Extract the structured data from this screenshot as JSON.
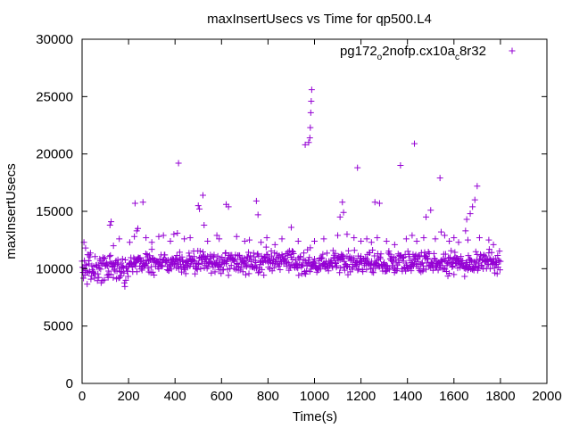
{
  "chart_data": {
    "type": "scatter",
    "title": "maxInsertUsecs vs Time for qp500.L4",
    "xlabel": "Time(s)",
    "ylabel": "maxInsertUsecs",
    "xlim": [
      0,
      2000
    ],
    "ylim": [
      0,
      30000
    ],
    "xticks": [
      0,
      200,
      400,
      600,
      800,
      1000,
      1200,
      1400,
      1600,
      1800,
      2000
    ],
    "yticks": [
      0,
      5000,
      10000,
      15000,
      20000,
      25000,
      30000
    ],
    "grid": false,
    "legend_position": "top-right",
    "series": [
      {
        "name": "pg172_o2nofp.cx10a_c8r32",
        "legend_parts": [
          "pg172",
          "o",
          "2nofp.cx10a",
          "c",
          "8r32"
        ],
        "color": "#9400d3",
        "marker": "+",
        "band": {
          "x_start": 0,
          "x_end": 1800,
          "x_step": 2,
          "segments": [
            {
              "x_from": 0,
              "x_to": 200,
              "y_low": 8500,
              "y_high": 11500
            },
            {
              "x_from": 200,
              "x_to": 1800,
              "y_low": 9300,
              "y_high": 11800
            }
          ]
        },
        "outliers": [
          {
            "x": 8,
            "y": 12300
          },
          {
            "x": 15,
            "y": 11800
          },
          {
            "x": 30,
            "y": 11200
          },
          {
            "x": 120,
            "y": 13800
          },
          {
            "x": 125,
            "y": 14100
          },
          {
            "x": 135,
            "y": 12000
          },
          {
            "x": 160,
            "y": 12600
          },
          {
            "x": 205,
            "y": 12300
          },
          {
            "x": 225,
            "y": 12800
          },
          {
            "x": 228,
            "y": 15700
          },
          {
            "x": 235,
            "y": 13300
          },
          {
            "x": 240,
            "y": 13500
          },
          {
            "x": 262,
            "y": 15800
          },
          {
            "x": 275,
            "y": 12700
          },
          {
            "x": 300,
            "y": 12300
          },
          {
            "x": 330,
            "y": 12800
          },
          {
            "x": 350,
            "y": 12900
          },
          {
            "x": 380,
            "y": 12400
          },
          {
            "x": 395,
            "y": 13000
          },
          {
            "x": 410,
            "y": 13100
          },
          {
            "x": 415,
            "y": 19200
          },
          {
            "x": 440,
            "y": 12600
          },
          {
            "x": 465,
            "y": 12700
          },
          {
            "x": 500,
            "y": 15500
          },
          {
            "x": 505,
            "y": 15200
          },
          {
            "x": 520,
            "y": 16400
          },
          {
            "x": 525,
            "y": 13800
          },
          {
            "x": 540,
            "y": 12400
          },
          {
            "x": 580,
            "y": 12900
          },
          {
            "x": 590,
            "y": 12600
          },
          {
            "x": 620,
            "y": 15600
          },
          {
            "x": 630,
            "y": 15400
          },
          {
            "x": 665,
            "y": 12800
          },
          {
            "x": 700,
            "y": 12400
          },
          {
            "x": 720,
            "y": 12500
          },
          {
            "x": 750,
            "y": 15900
          },
          {
            "x": 757,
            "y": 14700
          },
          {
            "x": 770,
            "y": 12300
          },
          {
            "x": 795,
            "y": 12700
          },
          {
            "x": 830,
            "y": 12100
          },
          {
            "x": 860,
            "y": 12600
          },
          {
            "x": 900,
            "y": 13600
          },
          {
            "x": 930,
            "y": 12400
          },
          {
            "x": 960,
            "y": 20800
          },
          {
            "x": 975,
            "y": 21000
          },
          {
            "x": 980,
            "y": 21400
          },
          {
            "x": 982,
            "y": 22300
          },
          {
            "x": 984,
            "y": 23600
          },
          {
            "x": 986,
            "y": 24600
          },
          {
            "x": 988,
            "y": 25600
          },
          {
            "x": 1000,
            "y": 12400
          },
          {
            "x": 1040,
            "y": 12600
          },
          {
            "x": 1100,
            "y": 12900
          },
          {
            "x": 1110,
            "y": 14500
          },
          {
            "x": 1120,
            "y": 15800
          },
          {
            "x": 1125,
            "y": 14900
          },
          {
            "x": 1140,
            "y": 13000
          },
          {
            "x": 1170,
            "y": 12700
          },
          {
            "x": 1185,
            "y": 18800
          },
          {
            "x": 1200,
            "y": 12400
          },
          {
            "x": 1225,
            "y": 12600
          },
          {
            "x": 1245,
            "y": 12300
          },
          {
            "x": 1260,
            "y": 15800
          },
          {
            "x": 1270,
            "y": 12700
          },
          {
            "x": 1280,
            "y": 15700
          },
          {
            "x": 1310,
            "y": 12400
          },
          {
            "x": 1345,
            "y": 12100
          },
          {
            "x": 1370,
            "y": 19000
          },
          {
            "x": 1395,
            "y": 12600
          },
          {
            "x": 1420,
            "y": 12900
          },
          {
            "x": 1430,
            "y": 20900
          },
          {
            "x": 1440,
            "y": 12400
          },
          {
            "x": 1470,
            "y": 12700
          },
          {
            "x": 1480,
            "y": 14500
          },
          {
            "x": 1500,
            "y": 15100
          },
          {
            "x": 1520,
            "y": 12600
          },
          {
            "x": 1540,
            "y": 17900
          },
          {
            "x": 1545,
            "y": 13200
          },
          {
            "x": 1560,
            "y": 12900
          },
          {
            "x": 1580,
            "y": 12400
          },
          {
            "x": 1600,
            "y": 12700
          },
          {
            "x": 1620,
            "y": 12300
          },
          {
            "x": 1650,
            "y": 13300
          },
          {
            "x": 1655,
            "y": 14300
          },
          {
            "x": 1660,
            "y": 12500
          },
          {
            "x": 1670,
            "y": 14800
          },
          {
            "x": 1680,
            "y": 15400
          },
          {
            "x": 1690,
            "y": 16000
          },
          {
            "x": 1700,
            "y": 17200
          },
          {
            "x": 1710,
            "y": 12700
          },
          {
            "x": 1750,
            "y": 12500
          },
          {
            "x": 1770,
            "y": 12100
          }
        ]
      }
    ]
  }
}
